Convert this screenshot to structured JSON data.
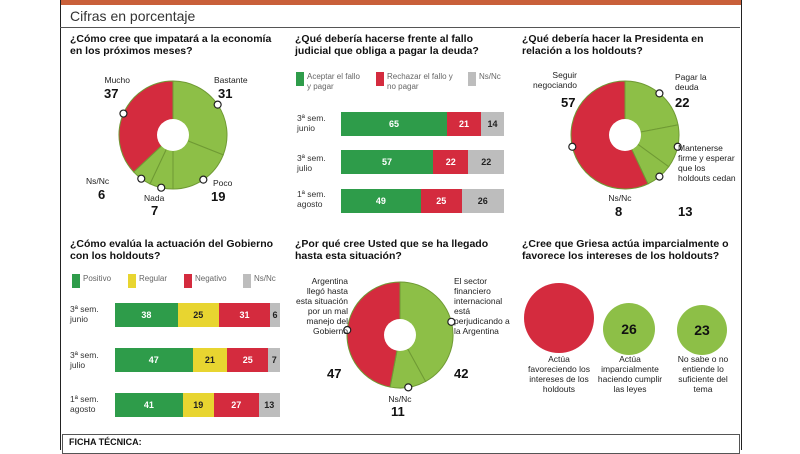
{
  "subtitle": "Cifras en porcentaje",
  "ficha": "FICHA TÉCNICA:",
  "colors": {
    "green": "#8dbf47",
    "red": "#d42b3e",
    "yellow": "#e8d530",
    "gray": "#bdbdbd",
    "dgreen": "#2e9c4a"
  },
  "chart_data": [
    {
      "type": "pie",
      "title": "¿Cómo cree que impatará a la economía en los próximos meses?",
      "slices": [
        {
          "label": "Bastante",
          "value": 31,
          "color": "#8dbf47"
        },
        {
          "label": "Poco",
          "value": 19,
          "color": "#8dbf47"
        },
        {
          "label": "Nada",
          "value": 7,
          "color": "#8dbf47"
        },
        {
          "label": "Ns/Nc",
          "value": 6,
          "color": "#8dbf47"
        },
        {
          "label": "Mucho",
          "value": 37,
          "color": "#d42b3e"
        }
      ]
    },
    {
      "type": "bar",
      "title": "¿Qué debería hacerse frente al fallo judicial que obliga a pagar la deuda?",
      "legend": [
        "Aceptar el fallo y pagar",
        "Rechazar el fallo y no pagar",
        "Ns/Nc"
      ],
      "categories": [
        "3ª sem. junio",
        "3ª sem. julio",
        "1ª sem. agosto"
      ],
      "series": [
        {
          "name": "Aceptar el fallo y pagar",
          "values": [
            65,
            57,
            49
          ],
          "color": "#2e9c4a"
        },
        {
          "name": "Rechazar el fallo y no pagar",
          "values": [
            21,
            22,
            25
          ],
          "color": "#d42b3e"
        },
        {
          "name": "Ns/Nc",
          "values": [
            14,
            22,
            26
          ],
          "color": "#bdbdbd"
        }
      ]
    },
    {
      "type": "pie",
      "title": "¿Qué debería hacer la Presidenta en relación a los holdouts?",
      "slices": [
        {
          "label": "Pagar la deuda",
          "value": 22,
          "color": "#8dbf47"
        },
        {
          "label": "Mantenerse firme y esperar que los holdouts cedan",
          "value": 13,
          "color": "#8dbf47"
        },
        {
          "label": "Ns/Nc",
          "value": 8,
          "color": "#8dbf47"
        },
        {
          "label": "Seguir negociando",
          "value": 57,
          "color": "#d42b3e"
        }
      ]
    },
    {
      "type": "bar",
      "title": "¿Cómo evalúa la actuación del Gobierno con los holdouts?",
      "legend": [
        "Positivo",
        "Regular",
        "Negativo",
        "Ns/Nc"
      ],
      "categories": [
        "3ª sem. junio",
        "3ª sem. julio",
        "1ª sem. agosto"
      ],
      "series": [
        {
          "name": "Positivo",
          "values": [
            38,
            47,
            41
          ],
          "color": "#2e9c4a"
        },
        {
          "name": "Regular",
          "values": [
            25,
            21,
            19
          ],
          "color": "#e8d530"
        },
        {
          "name": "Negativo",
          "values": [
            31,
            25,
            27
          ],
          "color": "#d42b3e"
        },
        {
          "name": "Ns/Nc",
          "values": [
            6,
            7,
            13
          ],
          "color": "#bdbdbd"
        }
      ]
    },
    {
      "type": "pie",
      "title": "¿Por qué cree Usted que se ha llegado hasta esta situación?",
      "slices": [
        {
          "label": "El sector financiero internacional está perjudicando a la Argentina",
          "value": 42,
          "color": "#8dbf47"
        },
        {
          "label": "Ns/Nc",
          "value": 11,
          "color": "#8dbf47"
        },
        {
          "label": "Argentina llegó hasta esta situación por un mal manejo del Gobierno",
          "value": 47,
          "color": "#d42b3e"
        }
      ]
    },
    {
      "type": "bubble",
      "title": "¿Cree que Griesa actúa imparcialmente o favorece los intereses de los holdouts?",
      "items": [
        {
          "label": "Actúa favoreciendo los intereses de los holdouts",
          "value": 51,
          "color": "#d42b3e"
        },
        {
          "label": "Actúa imparcialmente haciendo cumplir las leyes",
          "value": 26,
          "color": "#8dbf47"
        },
        {
          "label": "No sabe o no entiende lo suficiente del tema",
          "value": 23,
          "color": "#8dbf47"
        }
      ]
    }
  ]
}
